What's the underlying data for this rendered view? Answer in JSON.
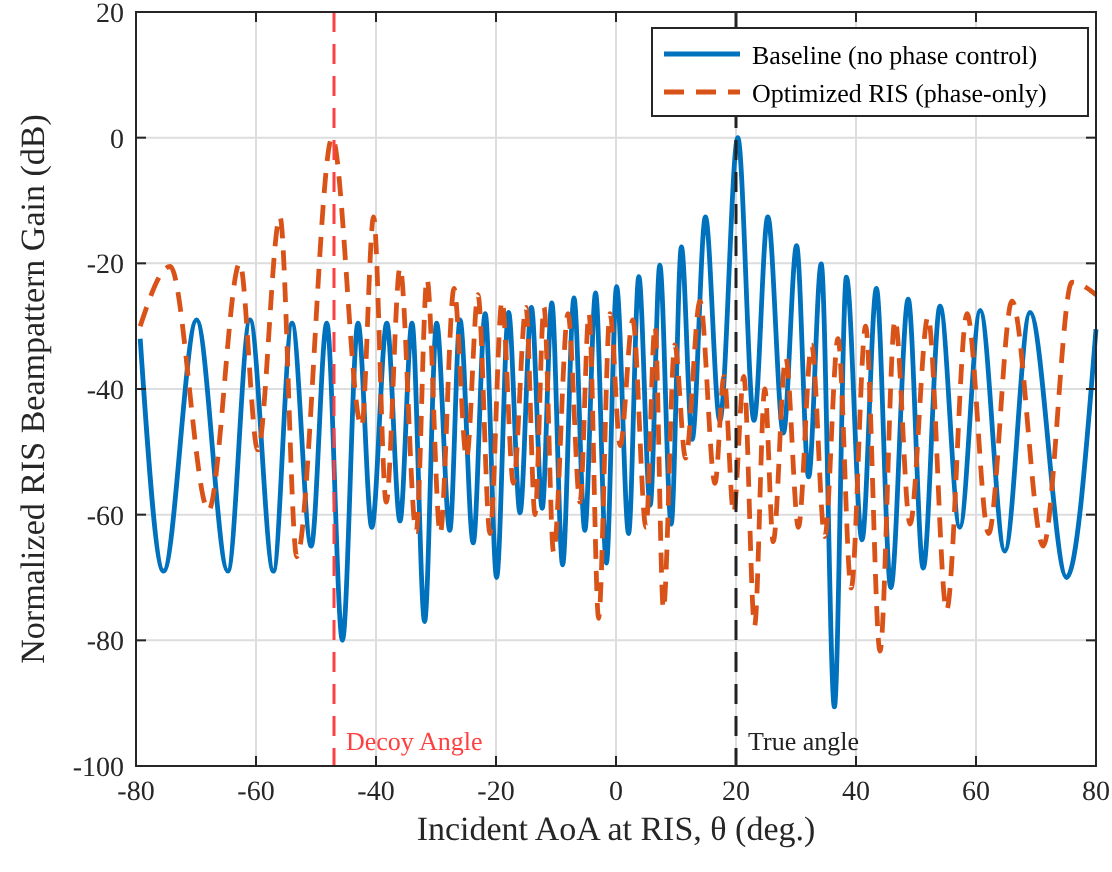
{
  "chart_data": {
    "type": "line",
    "xlabel": "Incident AoA at RIS, θ (deg.)",
    "ylabel": "Normalized RIS Beampattern Gain (dB)",
    "xlim": [
      -80,
      80
    ],
    "ylim": [
      -100,
      20
    ],
    "xticks": [
      -80,
      -60,
      -40,
      -20,
      0,
      20,
      40,
      60,
      80
    ],
    "yticks": [
      -100,
      -80,
      -60,
      -40,
      -20,
      0,
      20
    ],
    "grid": true,
    "legend": "top right",
    "marker": "none",
    "series": [
      {
        "name": "Baseline (no phase control)",
        "color": "#0072bd",
        "line_style": "solid",
        "x": [
          -79.3,
          -75.4,
          -69.9,
          -64.7,
          -61,
          -57.1,
          -54,
          -50.8,
          -48.2,
          -45.6,
          -43,
          -40.7,
          -38.2,
          -36,
          -34,
          -31.9,
          -29.9,
          -27.7,
          -26,
          -23.8,
          -21.8,
          -19.9,
          -17.9,
          -16,
          -14.1,
          -12.3,
          -10.7,
          -8.9,
          -7,
          -5.2,
          -3.4,
          -1.6,
          0.1,
          2.1,
          3.8,
          5.7,
          7.3,
          9.2,
          10.9,
          12.7,
          14.9,
          17.3,
          20.3,
          23,
          25.3,
          27.9,
          30.1,
          32.1,
          34.2,
          36.4,
          38.4,
          41,
          43.4,
          45.8,
          48.7,
          51.2,
          54,
          57.3,
          60.7,
          64.8,
          69,
          75.1,
          80
        ],
        "values": [
          -32,
          -69,
          -29,
          -69,
          -29,
          -69,
          -29.5,
          -65,
          -29.5,
          -80,
          -29.5,
          -62,
          -29.5,
          -61,
          -29.5,
          -77,
          -29.5,
          -62.5,
          -29,
          -64.5,
          -28,
          -70,
          -27.8,
          -59.7,
          -27,
          -59,
          -26.3,
          -68,
          -25.5,
          -62.5,
          -24.7,
          -67.7,
          -23.7,
          -63,
          -22.1,
          -58.5,
          -20.3,
          -61.5,
          -17.4,
          -48,
          -12.6,
          -45,
          0,
          -45,
          -12.6,
          -47,
          -17.2,
          -54,
          -20.1,
          -90.6,
          -22.2,
          -64,
          -24,
          -71.6,
          -25.7,
          -68.5,
          -26.8,
          -62,
          -27.5,
          -65.8,
          -27.8,
          -70,
          -30.5
        ]
      },
      {
        "name": "Optimized RIS (phase-only)",
        "color": "#d95319",
        "line_style": "dashed",
        "x": [
          -79.3,
          -74.3,
          -67.9,
          -62.7,
          -59.7,
          -56,
          -53.2,
          -47.3,
          -42.4,
          -40.4,
          -38.3,
          -36,
          -33.3,
          -31.5,
          -29.3,
          -27,
          -24.9,
          -23,
          -21,
          -19,
          -17.1,
          -15,
          -13.5,
          -12,
          -10.4,
          -8,
          -6,
          -4.5,
          -2.9,
          -1,
          0.7,
          2.8,
          5,
          6.5,
          7.9,
          9.8,
          11.6,
          14,
          16.5,
          18,
          19.6,
          21.3,
          23.1,
          24.8,
          26.2,
          28.3,
          30.4,
          32.6,
          34.8,
          37,
          39.2,
          41.6,
          44,
          46.5,
          49,
          52,
          55.1,
          58.5,
          62.1,
          66,
          71.2,
          76,
          80
        ],
        "values": [
          -30,
          -20.5,
          -59.3,
          -20,
          -49.7,
          -12.6,
          -66.7,
          0,
          -46,
          -12.6,
          -58,
          -20.7,
          -62.7,
          -22.5,
          -63,
          -24,
          -51,
          -25,
          -63,
          -26,
          -55,
          -27,
          -60,
          -27,
          -66,
          -28,
          -58,
          -28,
          -76.5,
          -28,
          -49,
          -29,
          -62,
          -30,
          -75,
          -33,
          -51,
          -26,
          -55,
          -38,
          -59.7,
          -38,
          -77.7,
          -40,
          -64.3,
          -35,
          -62,
          -33,
          -63.5,
          -32,
          -71.7,
          -30,
          -81.7,
          -29,
          -61.5,
          -28.5,
          -75.2,
          -28,
          -63,
          -26,
          -65,
          -23,
          -25
        ]
      }
    ],
    "ref_lines": [
      {
        "axis": "x",
        "value": -47,
        "label": "Decoy Angle",
        "color": "#ff4040",
        "line_style": "dashed"
      },
      {
        "axis": "x",
        "value": 20,
        "label": "True angle",
        "color": "#222222",
        "line_style": "dashed"
      }
    ]
  }
}
